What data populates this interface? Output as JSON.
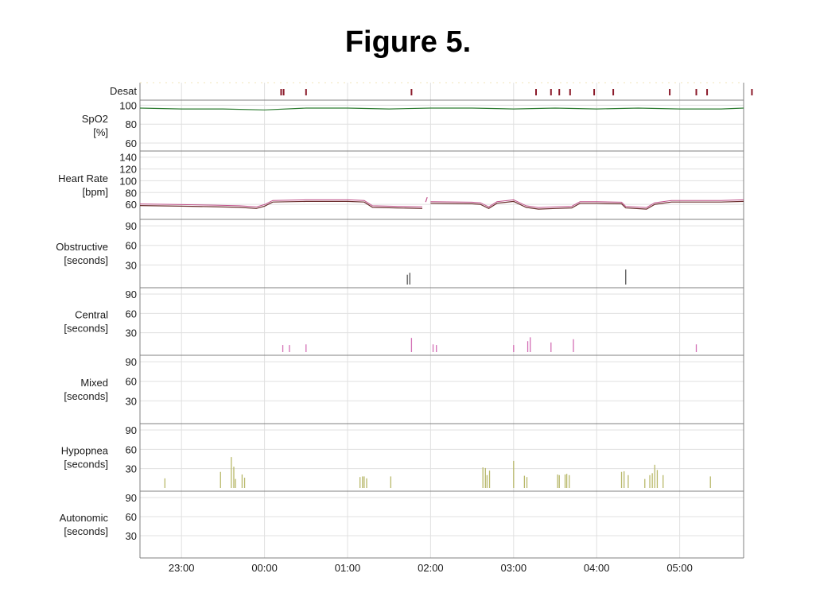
{
  "figure_title": "Figure 5.",
  "chart_data": {
    "type": "line",
    "x_range_hours": [
      22.5,
      29.77
    ],
    "x_ticks": [
      {
        "hour": 23,
        "label": "23:00"
      },
      {
        "hour": 24,
        "label": "00:00"
      },
      {
        "hour": 25,
        "label": "01:00"
      },
      {
        "hour": 26,
        "label": "02:00"
      },
      {
        "hour": 27,
        "label": "03:00"
      },
      {
        "hour": 28,
        "label": "04:00"
      },
      {
        "hour": 29,
        "label": "05:00"
      }
    ],
    "colors": {
      "desat_marker": "#8b1a2a",
      "spo2_line": "#2e7d32",
      "hr_line_1": "#6b2d2d",
      "hr_line_2": "#c0508a",
      "obstructive": "#555555",
      "central": "#d36fb5",
      "hypopnea": "#b8b86a",
      "grid": "#e0e0e0",
      "divider": "#808080"
    },
    "panels": {
      "desat": {
        "label": "Desat",
        "events_hours": [
          24.2,
          24.23,
          24.5,
          25.77,
          27.27,
          27.45,
          27.55,
          27.68,
          27.97,
          28.2,
          28.88,
          29.2,
          29.33,
          29.87
        ]
      },
      "spo2": {
        "label_1": "SpO2",
        "label_2": "[%]",
        "ticks": [
          "100",
          "80",
          "60"
        ],
        "tick_values": [
          100,
          80,
          60
        ],
        "ylim": [
          55,
          102
        ],
        "x": [
          22.5,
          23.0,
          23.5,
          24.0,
          24.5,
          25.0,
          25.5,
          26.0,
          26.5,
          27.0,
          27.5,
          28.0,
          28.5,
          29.0,
          29.5,
          29.77
        ],
        "values": [
          97,
          96,
          96,
          95,
          97,
          97,
          96,
          97,
          97,
          96,
          97,
          96,
          97,
          96,
          96,
          97
        ]
      },
      "heart_rate": {
        "label_1": "Heart Rate",
        "label_2": "[bpm]",
        "ticks": [
          "140",
          "120",
          "100",
          "80",
          "60"
        ],
        "tick_values": [
          140,
          120,
          100,
          80,
          60
        ],
        "ylim": [
          40,
          145
        ],
        "segments": [
          {
            "x": [
              22.5,
              23.0,
              23.4,
              23.7,
              23.9,
              24.0,
              24.1,
              24.5,
              25.0,
              25.2,
              25.3,
              25.6,
              25.9
            ],
            "values": [
              58,
              57,
              56,
              55,
              53,
              57,
              64,
              65,
              65,
              64,
              55,
              54,
              53
            ]
          },
          {
            "x": [
              25.95
            ],
            "values": [
              68
            ]
          },
          {
            "x": [
              26.0,
              26.5,
              26.6,
              26.7,
              26.8,
              27.0,
              27.15,
              27.3,
              27.5,
              27.7,
              27.8,
              28.0,
              28.3,
              28.35,
              28.6,
              28.7,
              28.9,
              29.2,
              29.5,
              29.77
            ],
            "values": [
              62,
              61,
              60,
              53,
              62,
              65,
              55,
              52,
              53,
              54,
              62,
              62,
              61,
              54,
              52,
              60,
              64,
              64,
              64,
              65
            ]
          }
        ]
      },
      "obstructive": {
        "label_1": "Obstructive",
        "label_2": "[seconds]",
        "ticks": [
          "90",
          "60",
          "30"
        ],
        "tick_values": [
          90,
          60,
          30
        ],
        "ylim": [
          0,
          95
        ],
        "event_hours": [
          25.72,
          25.75,
          28.35
        ],
        "durations": [
          15,
          18,
          23
        ]
      },
      "central": {
        "label_1": "Central",
        "label_2": "[seconds]",
        "ticks": [
          "90",
          "60",
          "30"
        ],
        "tick_values": [
          90,
          60,
          30
        ],
        "ylim": [
          0,
          95
        ],
        "event_hours": [
          24.22,
          24.3,
          24.5,
          25.77,
          26.03,
          26.07,
          27.0,
          27.17,
          27.2,
          27.45,
          27.72,
          29.2
        ],
        "durations": [
          11,
          11,
          12,
          22,
          12,
          11,
          11,
          17,
          23,
          15,
          20,
          12
        ]
      },
      "mixed": {
        "label_1": "Mixed",
        "label_2": "[seconds]",
        "ticks": [
          "90",
          "60",
          "30"
        ],
        "tick_values": [
          90,
          60,
          30
        ],
        "ylim": [
          0,
          95
        ]
      },
      "hypopnea": {
        "label_1": "Hypopnea",
        "label_2": "[seconds]",
        "ticks": [
          "90",
          "60",
          "30"
        ],
        "tick_values": [
          90,
          60,
          30
        ],
        "ylim": [
          0,
          95
        ],
        "event_hours": [
          22.8,
          23.47,
          23.6,
          23.63,
          23.65,
          23.73,
          23.76,
          25.15,
          25.18,
          25.2,
          25.23,
          25.52,
          26.63,
          26.66,
          26.68,
          26.71,
          27.0,
          27.13,
          27.16,
          27.53,
          27.55,
          27.62,
          27.64,
          27.67,
          28.3,
          28.33,
          28.38,
          28.58,
          28.64,
          28.67,
          28.7,
          28.73,
          28.8,
          29.37
        ],
        "durations": [
          15,
          25,
          48,
          33,
          14,
          21,
          16,
          17,
          18,
          18,
          15,
          18,
          32,
          31,
          20,
          27,
          42,
          19,
          17,
          21,
          20,
          21,
          22,
          20,
          25,
          26,
          20,
          14,
          20,
          23,
          36,
          28,
          20,
          18
        ]
      },
      "autonomic": {
        "label_1": "Autonomic",
        "label_2": "[seconds]",
        "ticks": [
          "90",
          "60",
          "30"
        ],
        "tick_values": [
          90,
          60,
          30
        ],
        "ylim": [
          0,
          95
        ]
      }
    }
  }
}
